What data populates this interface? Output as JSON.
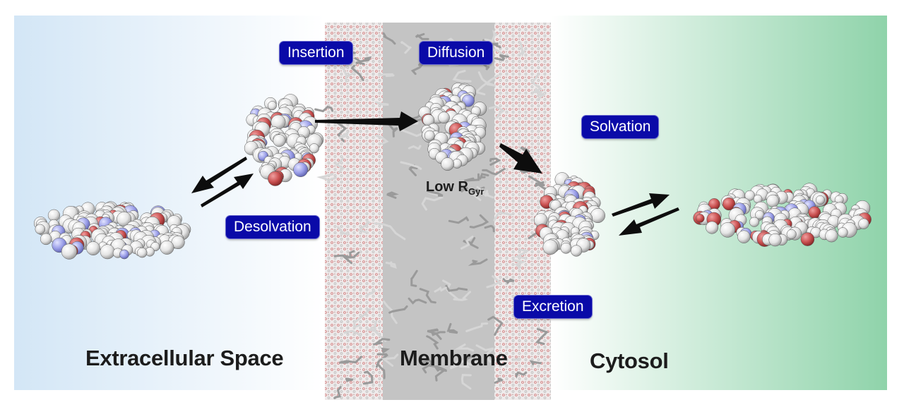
{
  "regions": {
    "extracellular": "Extracellular Space",
    "membrane": "Membrane",
    "cytosol": "Cytosol"
  },
  "processes": {
    "insertion": "Insertion",
    "diffusion": "Diffusion",
    "solvation": "Solvation",
    "desolvation": "Desolvation",
    "excretion": "Excretion"
  },
  "rgyr": {
    "prefix": "Low R",
    "subscript": "Gyr"
  },
  "colors": {
    "extracellular_gradient": "#d3e6f6",
    "cytosol_gradient": "#8fd3aa",
    "tag_fill": "#0a0aa8",
    "arrow": "#0d0d0d",
    "atom_carbon": "#f2f2f2",
    "atom_oxygen": "#c94f4f",
    "atom_nitrogen": "#9a9ee8",
    "lipid": "#a8a8a8"
  }
}
